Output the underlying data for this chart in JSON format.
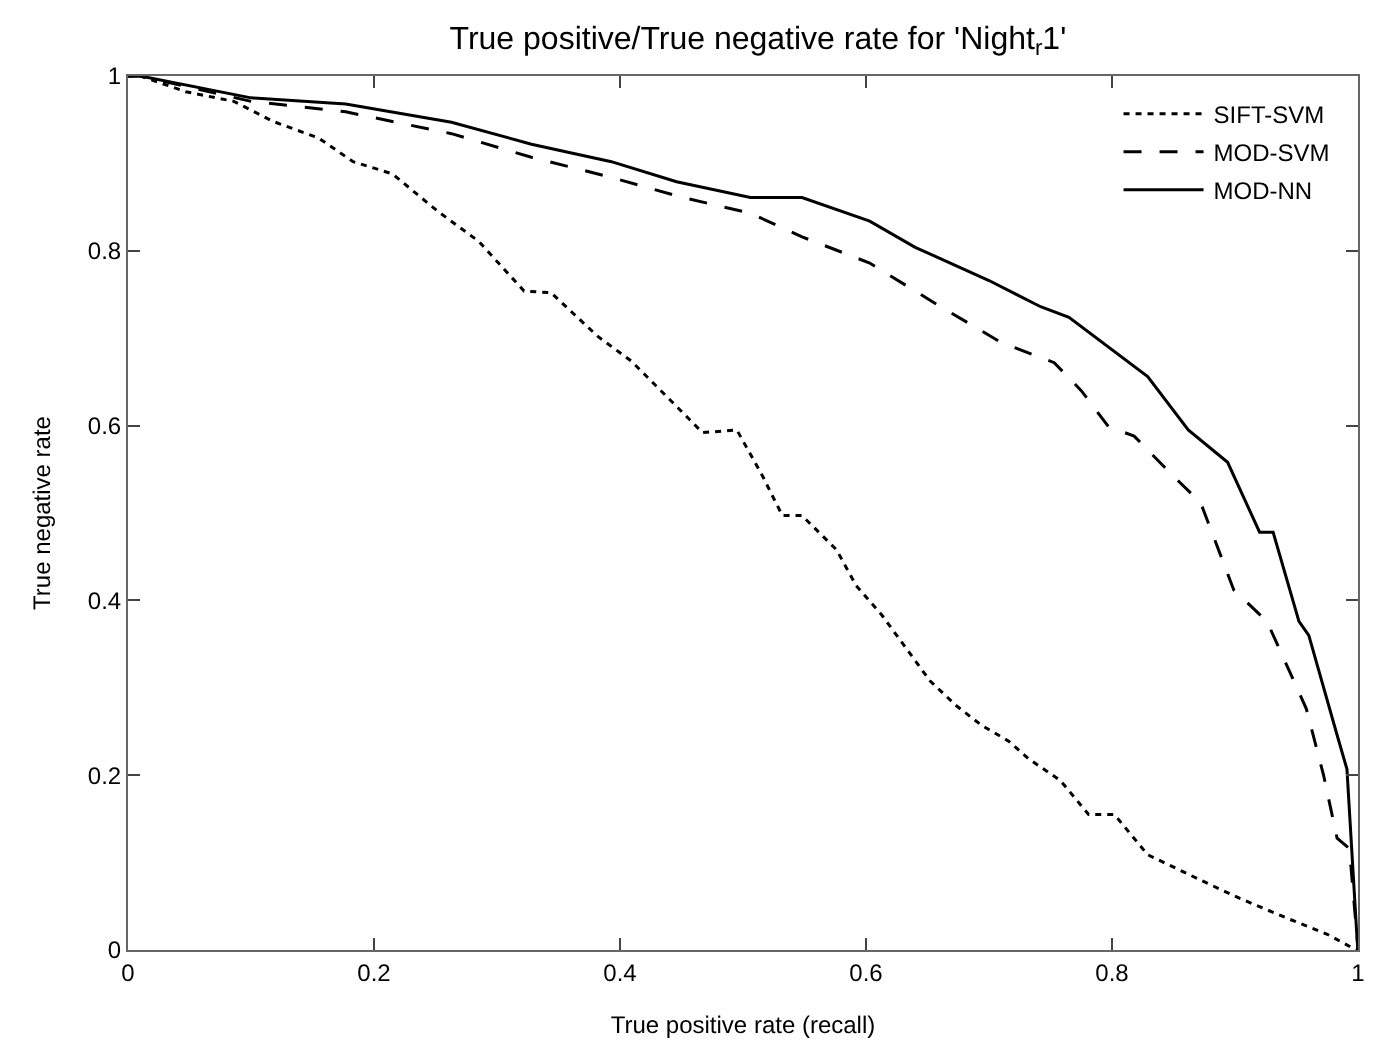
{
  "chart_data": {
    "type": "line",
    "title": "True positive/True negative rate for 'Night$_{r}$1'",
    "xlabel": "True positive rate (recall)",
    "ylabel": "True negative rate",
    "xlim": [
      0,
      1
    ],
    "ylim": [
      0,
      1
    ],
    "xticks": [
      0,
      0.2,
      0.4,
      0.6,
      0.8,
      1
    ],
    "yticks": [
      0,
      0.2,
      0.4,
      0.6,
      0.8,
      1
    ],
    "legend": "top right",
    "marker": "none",
    "series": [
      {
        "name": "SIFT-SVM",
        "color": "#000000",
        "line_style": "dotted",
        "x": [
          0,
          0.01,
          0.047,
          0.086,
          0.118,
          0.155,
          0.183,
          0.215,
          0.252,
          0.285,
          0.322,
          0.344,
          0.382,
          0.409,
          0.446,
          0.467,
          0.495,
          0.516,
          0.532,
          0.548,
          0.576,
          0.592,
          0.613,
          0.652,
          0.673,
          0.694,
          0.716,
          0.732,
          0.758,
          0.781,
          0.802,
          0.829,
          0.872,
          0.904,
          0.943,
          0.975,
          0.996,
          1
        ],
        "values": [
          1,
          1,
          0.982,
          0.971,
          0.948,
          0.929,
          0.902,
          0.888,
          0.845,
          0.811,
          0.754,
          0.752,
          0.702,
          0.674,
          0.622,
          0.592,
          0.595,
          0.542,
          0.497,
          0.497,
          0.458,
          0.417,
          0.383,
          0.308,
          0.28,
          0.257,
          0.239,
          0.219,
          0.194,
          0.155,
          0.155,
          0.109,
          0.08,
          0.059,
          0.036,
          0.018,
          0.002,
          0
        ]
      },
      {
        "name": "MOD-SVM",
        "color": "#000000",
        "line_style": "dashed",
        "x": [
          0,
          0.01,
          0.1,
          0.177,
          0.263,
          0.328,
          0.393,
          0.451,
          0.506,
          0.548,
          0.603,
          0.656,
          0.71,
          0.753,
          0.775,
          0.797,
          0.818,
          0.85,
          0.872,
          0.899,
          0.926,
          0.958,
          0.972,
          0.983,
          0.993,
          0.999,
          1
        ],
        "values": [
          1,
          1,
          0.971,
          0.959,
          0.934,
          0.907,
          0.884,
          0.861,
          0.843,
          0.816,
          0.786,
          0.74,
          0.695,
          0.672,
          0.64,
          0.599,
          0.588,
          0.542,
          0.512,
          0.412,
          0.376,
          0.276,
          0.2,
          0.128,
          0.116,
          0.018,
          0
        ]
      },
      {
        "name": "MOD-NN",
        "color": "#000000",
        "line_style": "solid",
        "x": [
          0,
          0.01,
          0.1,
          0.177,
          0.263,
          0.328,
          0.393,
          0.446,
          0.506,
          0.548,
          0.603,
          0.64,
          0.7,
          0.742,
          0.765,
          0.829,
          0.862,
          0.894,
          0.92,
          0.931,
          0.952,
          0.96,
          0.983,
          0.991,
          0.999,
          1
        ],
        "values": [
          1,
          1,
          0.975,
          0.968,
          0.947,
          0.922,
          0.902,
          0.879,
          0.861,
          0.861,
          0.834,
          0.804,
          0.766,
          0.736,
          0.724,
          0.656,
          0.595,
          0.558,
          0.478,
          0.478,
          0.376,
          0.36,
          0.246,
          0.207,
          0.018,
          0
        ]
      }
    ]
  }
}
